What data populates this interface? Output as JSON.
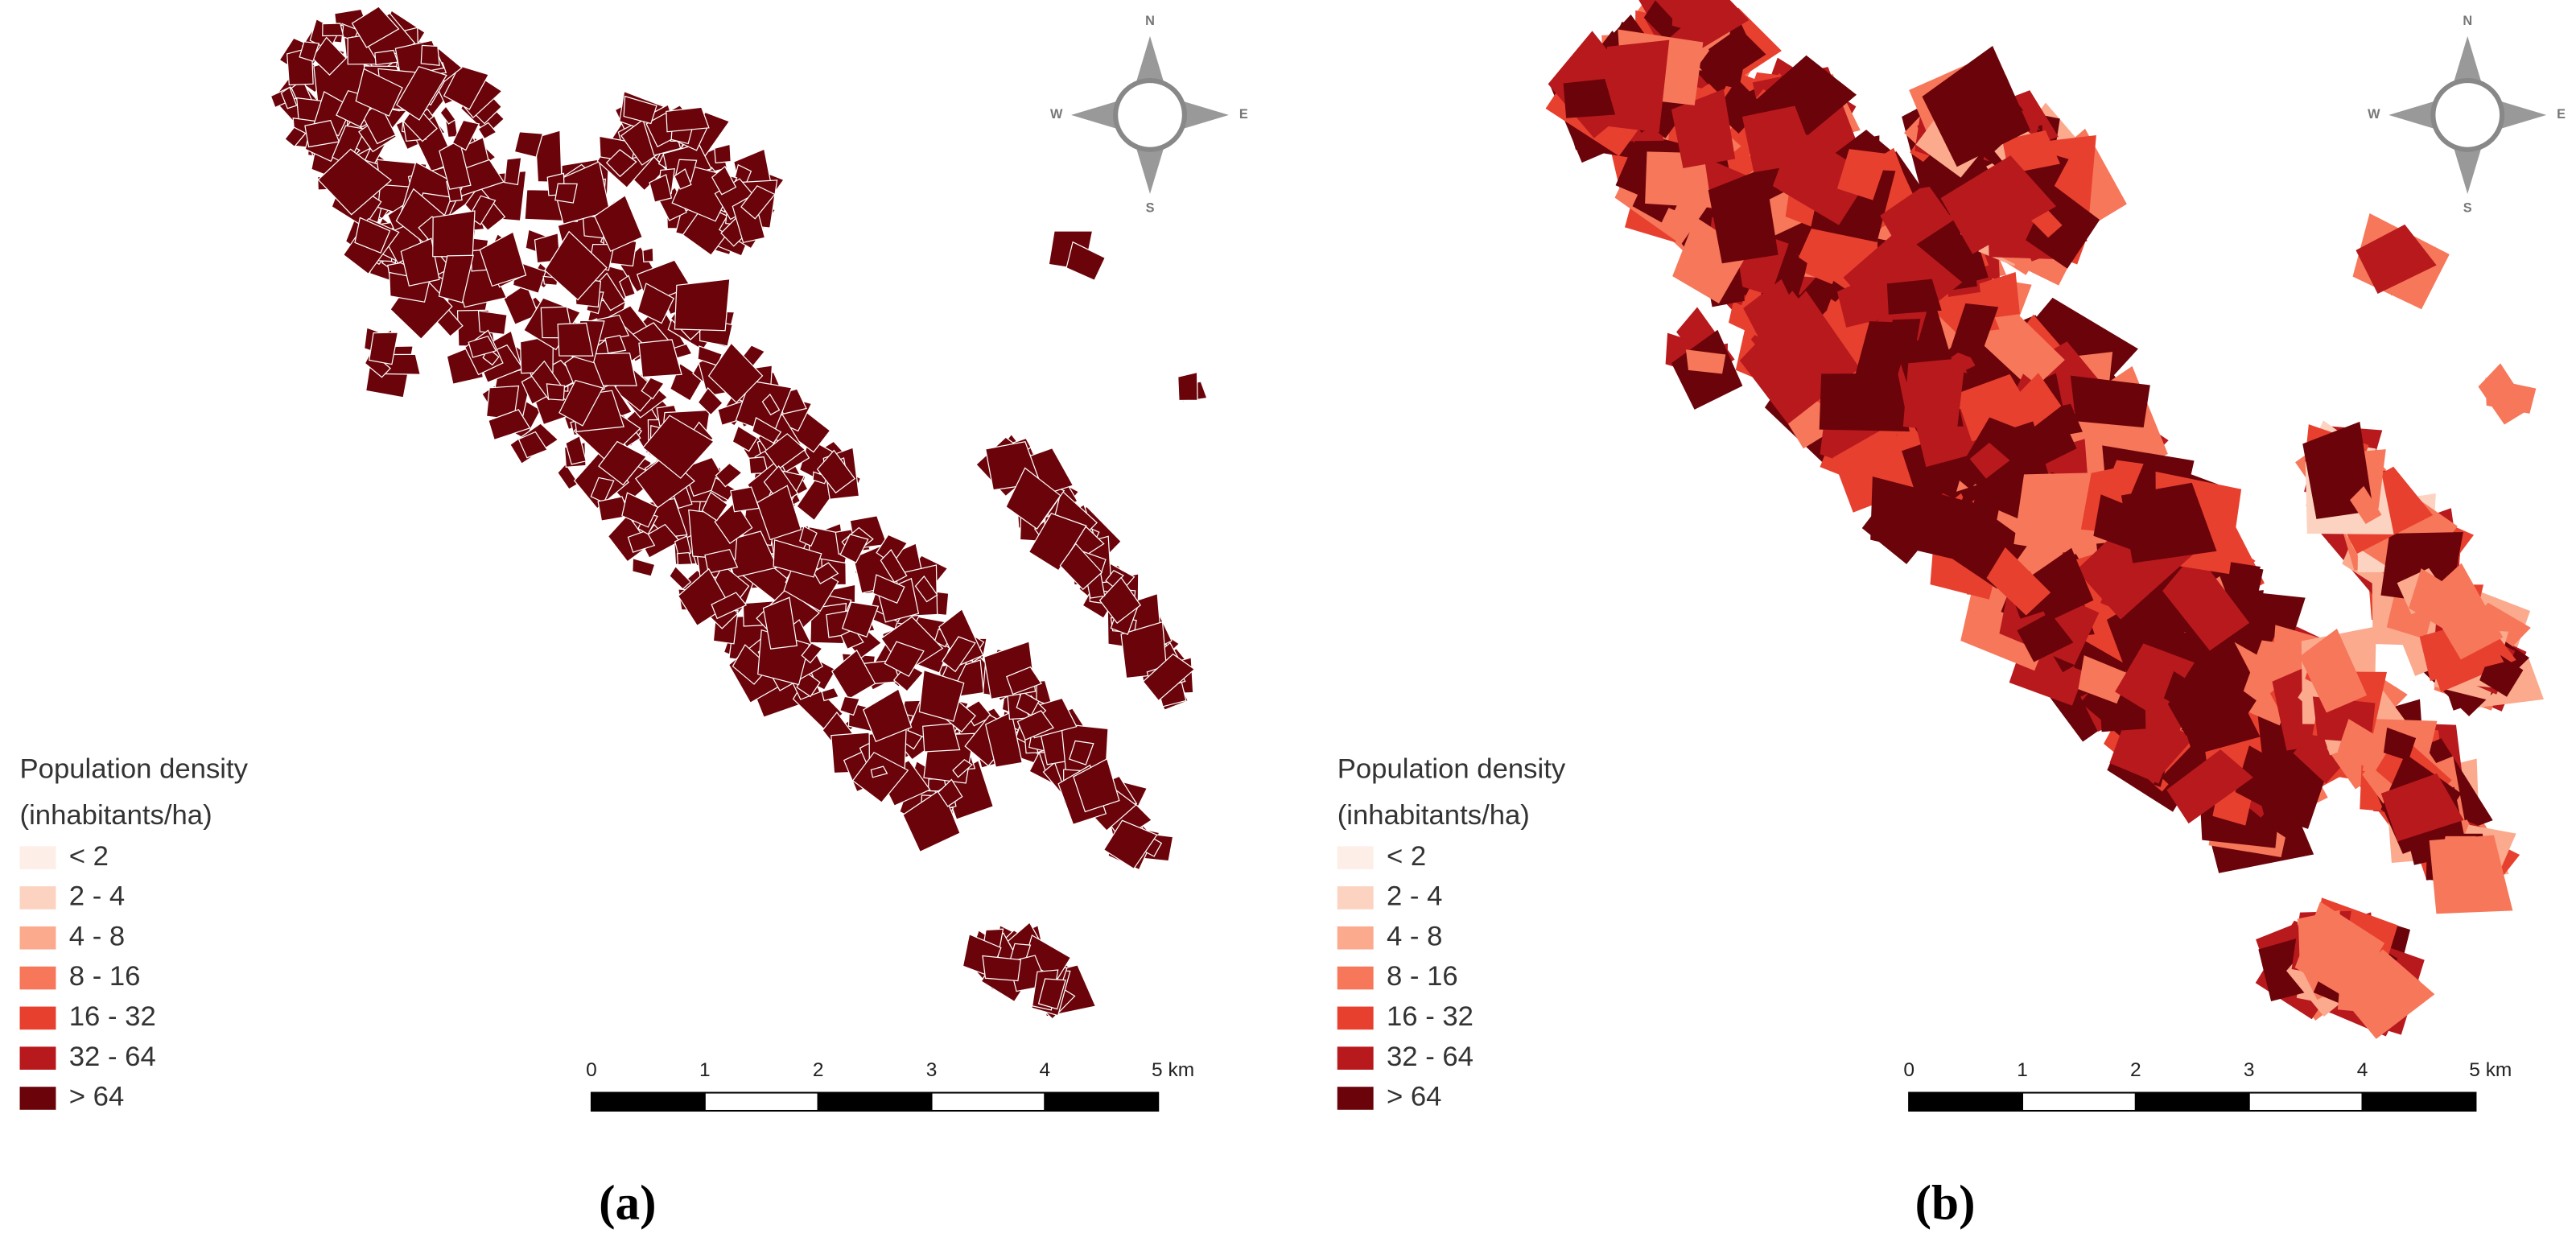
{
  "panels": [
    {
      "caption": "(a)",
      "legend": {
        "title": "Population density",
        "subtitle": "(inhabitants/ha)",
        "items": [
          {
            "label": "< 2",
            "color": "#fdeee8"
          },
          {
            "label": "2 - 4",
            "color": "#fcd3c1"
          },
          {
            "label": "4 - 8",
            "color": "#fbaa8e"
          },
          {
            "label": "8 - 16",
            "color": "#f7775a"
          },
          {
            "label": "16 - 32",
            "color": "#e8402f"
          },
          {
            "label": "32 - 64",
            "color": "#b8191d"
          },
          {
            "label": "> 64",
            "color": "#6b040a"
          }
        ]
      },
      "scale_bar": {
        "ticks": [
          0,
          1,
          2,
          3,
          4,
          {
            "value": 5,
            "label": "5 km"
          }
        ]
      },
      "compass": {
        "n": "N",
        "e": "E",
        "s": "S",
        "w": "W"
      }
    },
    {
      "caption": "(b)",
      "legend": {
        "title": "Population density",
        "subtitle": "(inhabitants/ha)",
        "items": [
          {
            "label": "< 2",
            "color": "#fdeee8"
          },
          {
            "label": "2 - 4",
            "color": "#fcd3c1"
          },
          {
            "label": "4 - 8",
            "color": "#fbaa8e"
          },
          {
            "label": "8 - 16",
            "color": "#f7775a"
          },
          {
            "label": "16 - 32",
            "color": "#e8402f"
          },
          {
            "label": "32 - 64",
            "color": "#b8191d"
          },
          {
            "label": "> 64",
            "color": "#6b040a"
          }
        ]
      },
      "scale_bar": {
        "ticks": [
          0,
          1,
          2,
          3,
          4,
          {
            "value": 5,
            "label": "5 km"
          }
        ]
      },
      "compass": {
        "n": "N",
        "e": "E",
        "s": "S",
        "w": "W"
      }
    }
  ]
}
